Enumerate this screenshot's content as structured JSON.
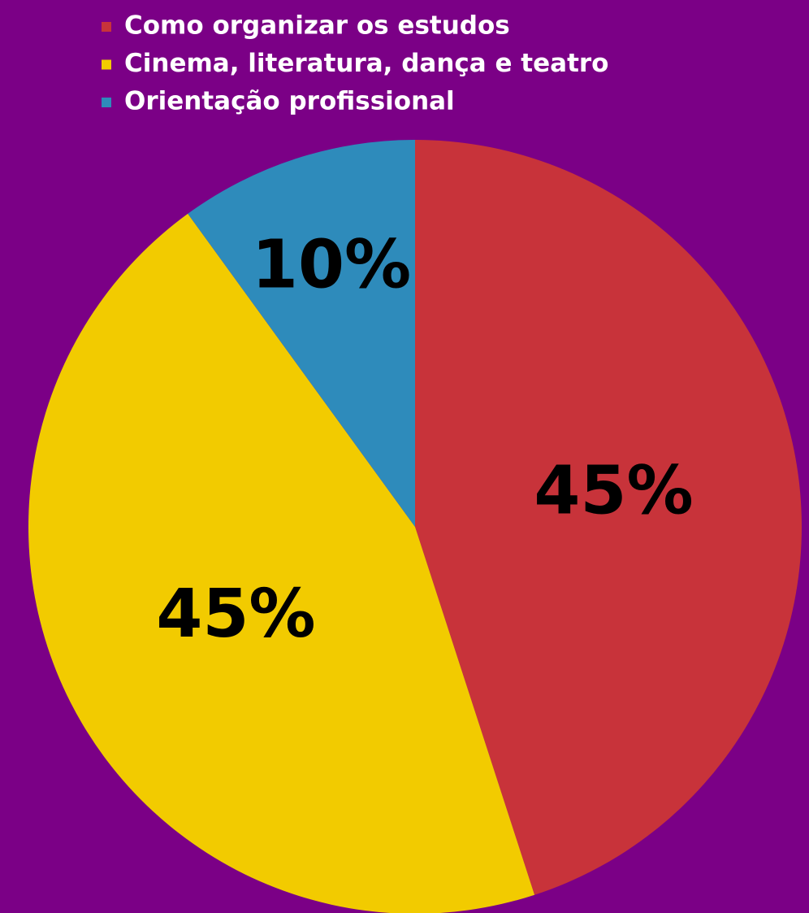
{
  "chart_data": {
    "type": "pie",
    "categories": [
      "Como organizar os estudos",
      "Cinema, literatura, dança e teatro",
      "Orientação profissional"
    ],
    "values": [
      45,
      45,
      10
    ],
    "value_labels": [
      "45%",
      "45%",
      "10%"
    ],
    "colors": [
      "#c8333a",
      "#f2cb00",
      "#2e8bbb"
    ],
    "legend": "top"
  }
}
